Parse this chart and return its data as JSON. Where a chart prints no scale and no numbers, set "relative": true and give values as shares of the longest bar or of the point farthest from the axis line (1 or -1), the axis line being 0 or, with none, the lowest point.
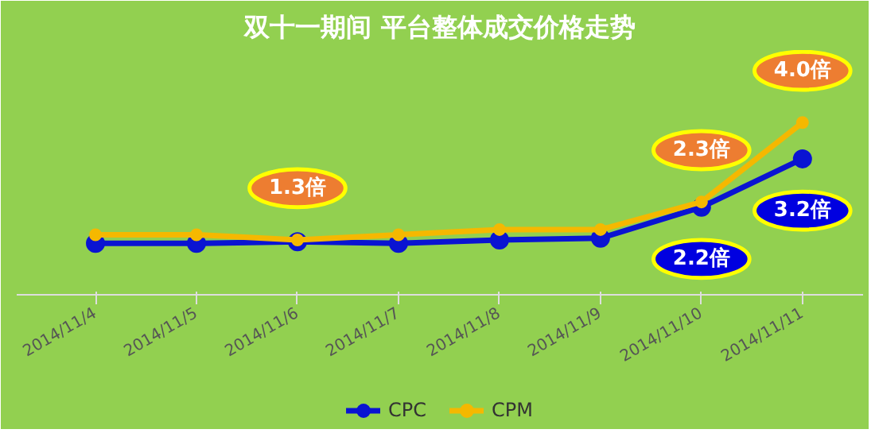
{
  "chart_data": {
    "type": "line",
    "title": "双十一期间 平台整体成交价格走势",
    "relative": true,
    "categories": [
      "2014/11/4",
      "2014/11/5",
      "2014/11/6",
      "2014/11/7",
      "2014/11/8",
      "2014/11/9",
      "2014/11/10",
      "2014/11/11"
    ],
    "series": [
      {
        "name": "CPC",
        "color": "#0a14d2",
        "values": [
          0.3,
          0.3,
          0.31,
          0.3,
          0.32,
          0.33,
          0.51,
          0.79
        ]
      },
      {
        "name": "CPM",
        "color": "#f5b800",
        "values": [
          0.35,
          0.35,
          0.32,
          0.35,
          0.38,
          0.38,
          0.54,
          1.0
        ]
      }
    ],
    "annotations": [
      {
        "text": "1.3倍",
        "x": "2014/11/6",
        "y": 0.32
      },
      {
        "text": "2.3倍",
        "x": "2014/11/10",
        "y": 0.54
      },
      {
        "text": "4.0倍",
        "x": "2014/11/11",
        "y": 1.0
      },
      {
        "text": "2.2倍",
        "x": "2014/11/10",
        "y": 0.51
      },
      {
        "text": "3.2倍",
        "x": "2014/11/11",
        "y": 0.79
      }
    ],
    "marker": "circle",
    "line_style": "solid",
    "legend": "bottom"
  }
}
